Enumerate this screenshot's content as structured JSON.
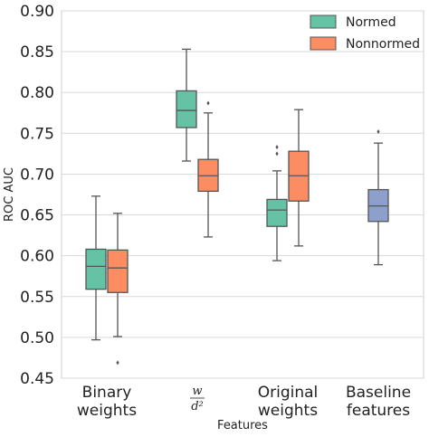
{
  "chart_data": {
    "type": "box",
    "ylabel": "ROC AUC",
    "xlabel": "Features",
    "ylim": [
      0.45,
      0.9
    ],
    "yticks": [
      0.45,
      0.5,
      0.55,
      0.6,
      0.65,
      0.7,
      0.75,
      0.8,
      0.85,
      0.9
    ],
    "grid": "horizontal",
    "legend_position": "top-right",
    "categories": [
      {
        "lines": [
          "Binary",
          "weights"
        ],
        "math": false
      },
      {
        "lines": [
          "w",
          "d²"
        ],
        "math": true
      },
      {
        "lines": [
          "Original",
          "weights"
        ],
        "math": false
      },
      {
        "lines": [
          "Baseline",
          "features"
        ],
        "math": false
      }
    ],
    "series": [
      {
        "name": "Normed",
        "color": "#66c2a5"
      },
      {
        "name": "Nonnormed",
        "color": "#fc8d62"
      }
    ],
    "baseline_color": "#8da0cb",
    "boxes": [
      {
        "category": 0,
        "series": "Normed",
        "whisker_low": 0.497,
        "q1": 0.559,
        "median": 0.587,
        "q3": 0.608,
        "whisker_high": 0.673,
        "outliers": []
      },
      {
        "category": 0,
        "series": "Nonnormed",
        "whisker_low": 0.501,
        "q1": 0.555,
        "median": 0.585,
        "q3": 0.607,
        "whisker_high": 0.652,
        "outliers": [
          0.469
        ]
      },
      {
        "category": 1,
        "series": "Normed",
        "whisker_low": 0.716,
        "q1": 0.757,
        "median": 0.778,
        "q3": 0.802,
        "whisker_high": 0.853,
        "outliers": []
      },
      {
        "category": 1,
        "series": "Nonnormed",
        "whisker_low": 0.623,
        "q1": 0.679,
        "median": 0.698,
        "q3": 0.718,
        "whisker_high": 0.775,
        "outliers": [
          0.787
        ]
      },
      {
        "category": 2,
        "series": "Normed",
        "whisker_low": 0.594,
        "q1": 0.636,
        "median": 0.656,
        "q3": 0.669,
        "whisker_high": 0.704,
        "outliers": [
          0.725,
          0.733
        ]
      },
      {
        "category": 2,
        "series": "Nonnormed",
        "whisker_low": 0.612,
        "q1": 0.667,
        "median": 0.698,
        "q3": 0.728,
        "whisker_high": 0.779,
        "outliers": []
      },
      {
        "category": 3,
        "series": "Baseline",
        "whisker_low": 0.589,
        "q1": 0.642,
        "median": 0.661,
        "q3": 0.681,
        "whisker_high": 0.738,
        "outliers": [
          0.752
        ]
      }
    ]
  }
}
